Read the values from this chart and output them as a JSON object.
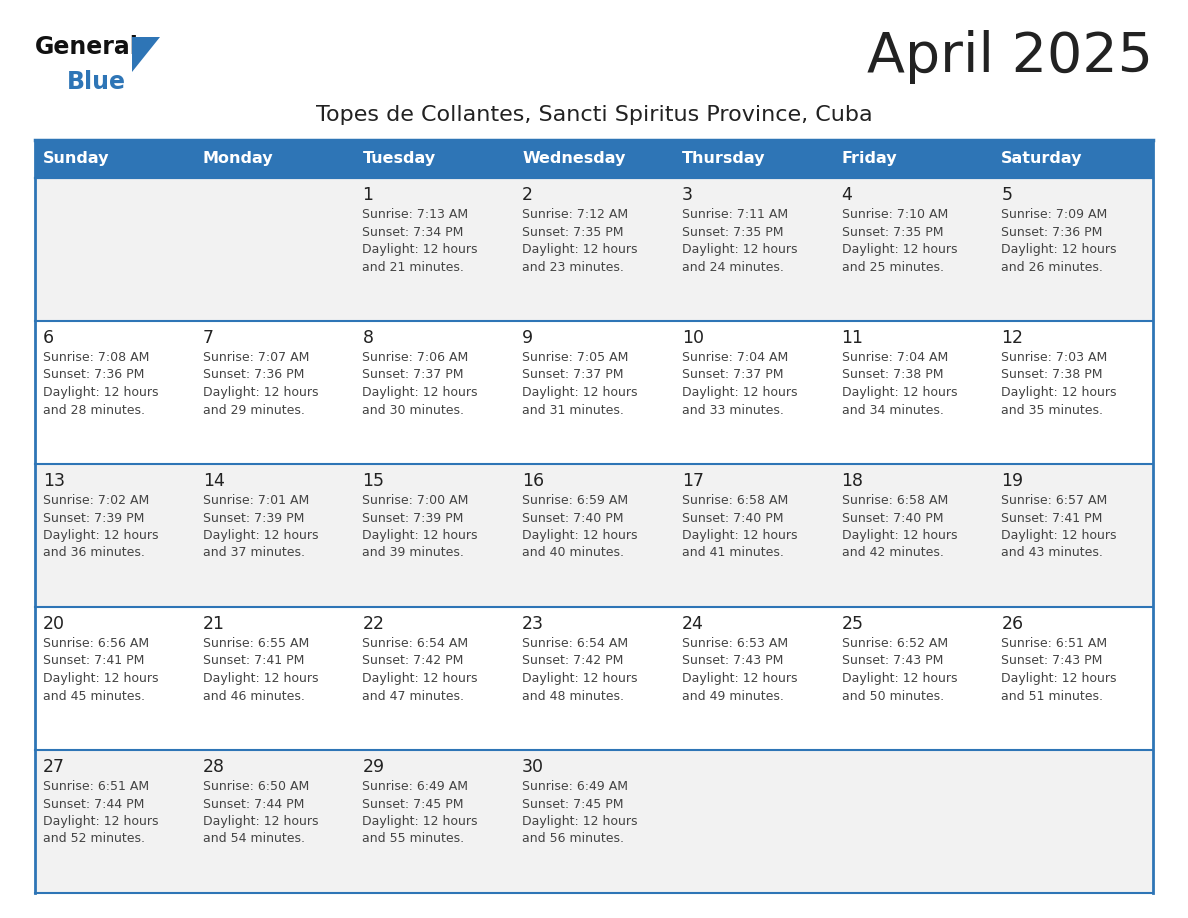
{
  "title": "April 2025",
  "subtitle": "Topes de Collantes, Sancti Spiritus Province, Cuba",
  "header_bg_color": "#2E75B6",
  "header_text_color": "#FFFFFF",
  "day_names": [
    "Sunday",
    "Monday",
    "Tuesday",
    "Wednesday",
    "Thursday",
    "Friday",
    "Saturday"
  ],
  "row_colors": [
    "#F2F2F2",
    "#FFFFFF",
    "#F2F2F2",
    "#FFFFFF",
    "#F2F2F2"
  ],
  "border_color": "#2E75B6",
  "divider_color": "#2E75B6",
  "text_color": "#444444",
  "number_color": "#222222",
  "logo_general_color": "#111111",
  "logo_blue_color": "#2E75B6",
  "bg_color": "#FFFFFF",
  "calendar": [
    [
      {
        "day": null,
        "info": ""
      },
      {
        "day": null,
        "info": ""
      },
      {
        "day": 1,
        "info": "Sunrise: 7:13 AM\nSunset: 7:34 PM\nDaylight: 12 hours\nand 21 minutes."
      },
      {
        "day": 2,
        "info": "Sunrise: 7:12 AM\nSunset: 7:35 PM\nDaylight: 12 hours\nand 23 minutes."
      },
      {
        "day": 3,
        "info": "Sunrise: 7:11 AM\nSunset: 7:35 PM\nDaylight: 12 hours\nand 24 minutes."
      },
      {
        "day": 4,
        "info": "Sunrise: 7:10 AM\nSunset: 7:35 PM\nDaylight: 12 hours\nand 25 minutes."
      },
      {
        "day": 5,
        "info": "Sunrise: 7:09 AM\nSunset: 7:36 PM\nDaylight: 12 hours\nand 26 minutes."
      }
    ],
    [
      {
        "day": 6,
        "info": "Sunrise: 7:08 AM\nSunset: 7:36 PM\nDaylight: 12 hours\nand 28 minutes."
      },
      {
        "day": 7,
        "info": "Sunrise: 7:07 AM\nSunset: 7:36 PM\nDaylight: 12 hours\nand 29 minutes."
      },
      {
        "day": 8,
        "info": "Sunrise: 7:06 AM\nSunset: 7:37 PM\nDaylight: 12 hours\nand 30 minutes."
      },
      {
        "day": 9,
        "info": "Sunrise: 7:05 AM\nSunset: 7:37 PM\nDaylight: 12 hours\nand 31 minutes."
      },
      {
        "day": 10,
        "info": "Sunrise: 7:04 AM\nSunset: 7:37 PM\nDaylight: 12 hours\nand 33 minutes."
      },
      {
        "day": 11,
        "info": "Sunrise: 7:04 AM\nSunset: 7:38 PM\nDaylight: 12 hours\nand 34 minutes."
      },
      {
        "day": 12,
        "info": "Sunrise: 7:03 AM\nSunset: 7:38 PM\nDaylight: 12 hours\nand 35 minutes."
      }
    ],
    [
      {
        "day": 13,
        "info": "Sunrise: 7:02 AM\nSunset: 7:39 PM\nDaylight: 12 hours\nand 36 minutes."
      },
      {
        "day": 14,
        "info": "Sunrise: 7:01 AM\nSunset: 7:39 PM\nDaylight: 12 hours\nand 37 minutes."
      },
      {
        "day": 15,
        "info": "Sunrise: 7:00 AM\nSunset: 7:39 PM\nDaylight: 12 hours\nand 39 minutes."
      },
      {
        "day": 16,
        "info": "Sunrise: 6:59 AM\nSunset: 7:40 PM\nDaylight: 12 hours\nand 40 minutes."
      },
      {
        "day": 17,
        "info": "Sunrise: 6:58 AM\nSunset: 7:40 PM\nDaylight: 12 hours\nand 41 minutes."
      },
      {
        "day": 18,
        "info": "Sunrise: 6:58 AM\nSunset: 7:40 PM\nDaylight: 12 hours\nand 42 minutes."
      },
      {
        "day": 19,
        "info": "Sunrise: 6:57 AM\nSunset: 7:41 PM\nDaylight: 12 hours\nand 43 minutes."
      }
    ],
    [
      {
        "day": 20,
        "info": "Sunrise: 6:56 AM\nSunset: 7:41 PM\nDaylight: 12 hours\nand 45 minutes."
      },
      {
        "day": 21,
        "info": "Sunrise: 6:55 AM\nSunset: 7:41 PM\nDaylight: 12 hours\nand 46 minutes."
      },
      {
        "day": 22,
        "info": "Sunrise: 6:54 AM\nSunset: 7:42 PM\nDaylight: 12 hours\nand 47 minutes."
      },
      {
        "day": 23,
        "info": "Sunrise: 6:54 AM\nSunset: 7:42 PM\nDaylight: 12 hours\nand 48 minutes."
      },
      {
        "day": 24,
        "info": "Sunrise: 6:53 AM\nSunset: 7:43 PM\nDaylight: 12 hours\nand 49 minutes."
      },
      {
        "day": 25,
        "info": "Sunrise: 6:52 AM\nSunset: 7:43 PM\nDaylight: 12 hours\nand 50 minutes."
      },
      {
        "day": 26,
        "info": "Sunrise: 6:51 AM\nSunset: 7:43 PM\nDaylight: 12 hours\nand 51 minutes."
      }
    ],
    [
      {
        "day": 27,
        "info": "Sunrise: 6:51 AM\nSunset: 7:44 PM\nDaylight: 12 hours\nand 52 minutes."
      },
      {
        "day": 28,
        "info": "Sunrise: 6:50 AM\nSunset: 7:44 PM\nDaylight: 12 hours\nand 54 minutes."
      },
      {
        "day": 29,
        "info": "Sunrise: 6:49 AM\nSunset: 7:45 PM\nDaylight: 12 hours\nand 55 minutes."
      },
      {
        "day": 30,
        "info": "Sunrise: 6:49 AM\nSunset: 7:45 PM\nDaylight: 12 hours\nand 56 minutes."
      },
      {
        "day": null,
        "info": ""
      },
      {
        "day": null,
        "info": ""
      },
      {
        "day": null,
        "info": ""
      }
    ]
  ]
}
